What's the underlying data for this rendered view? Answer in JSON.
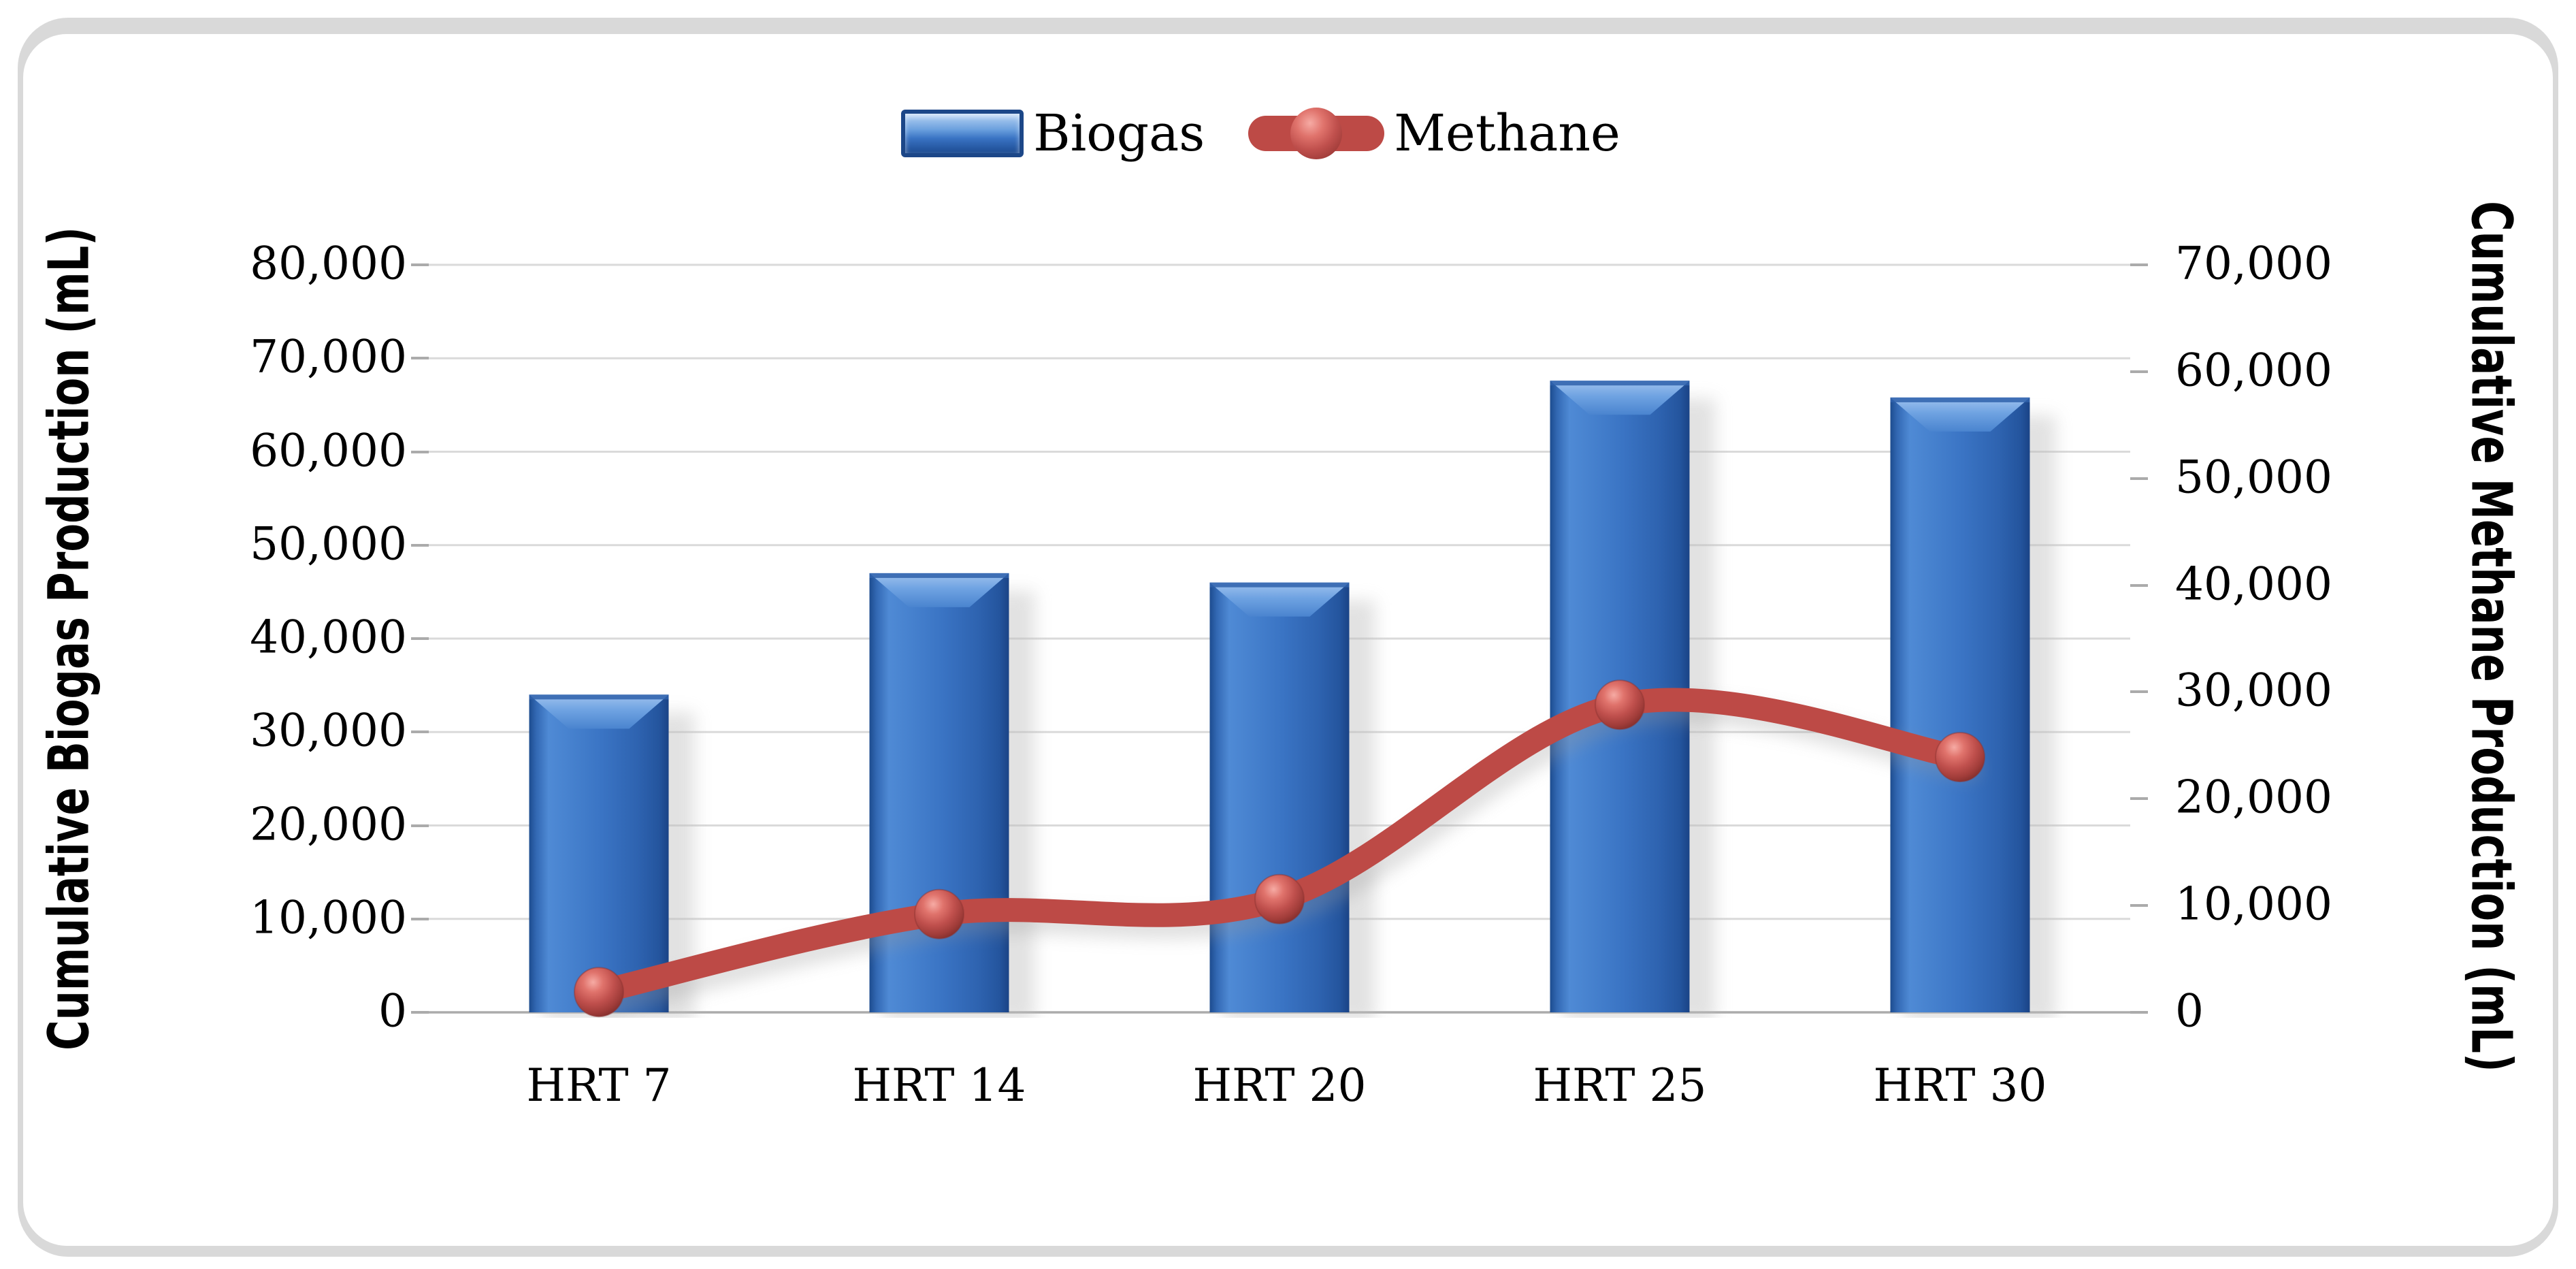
{
  "legend": {
    "items": [
      {
        "label": "Biogas",
        "swatch": "blue-3d-bar"
      },
      {
        "label": "Methane",
        "swatch": "red-line-sphere-marker"
      }
    ]
  },
  "left_axis": {
    "title": "Cumulative Biogas Production (mL)",
    "ticks": [
      "80,000",
      "70,000",
      "60,000",
      "50,000",
      "40,000",
      "30,000",
      "20,000",
      "10,000",
      "0"
    ]
  },
  "right_axis": {
    "title": "Cumulative Methane Production (mL)",
    "ticks": [
      "70,000",
      "60,000",
      "50,000",
      "40,000",
      "30,000",
      "20,000",
      "10,000",
      "0"
    ]
  },
  "x_axis": {
    "categories": [
      "HRT 7",
      "HRT 14",
      "HRT 20",
      "HRT 25",
      "HRT 30"
    ]
  },
  "chart_data": {
    "type": "combo_bar_line",
    "categories": [
      "HRT 7",
      "HRT 14",
      "HRT 20",
      "HRT 25",
      "HRT 30"
    ],
    "series": [
      {
        "name": "Biogas",
        "type": "bar",
        "axis": "left",
        "color": "#3a74c4",
        "values": [
          34000,
          47000,
          46000,
          67600,
          65800
        ]
      },
      {
        "name": "Methane",
        "type": "line",
        "axis": "right",
        "color": "#bd4a46",
        "values": [
          1900,
          9200,
          10600,
          28800,
          23900
        ]
      }
    ],
    "left_ylabel": "Cumulative Biogas Production (mL)",
    "right_ylabel": "Cumulative Methane Production (mL)",
    "left_ylim": [
      0,
      80000
    ],
    "right_ylim": [
      0,
      70000
    ],
    "tick_step": 10000,
    "grid": true,
    "legend_position": "top center"
  },
  "colors": {
    "bar_fill": "#3a74c4",
    "bar_edge_dark": "#1d4c8f",
    "line": "#bd4a46",
    "gridline": "#dadada",
    "axis_line": "#ababab",
    "frame": "#d9d9d9",
    "text": "#000000"
  }
}
